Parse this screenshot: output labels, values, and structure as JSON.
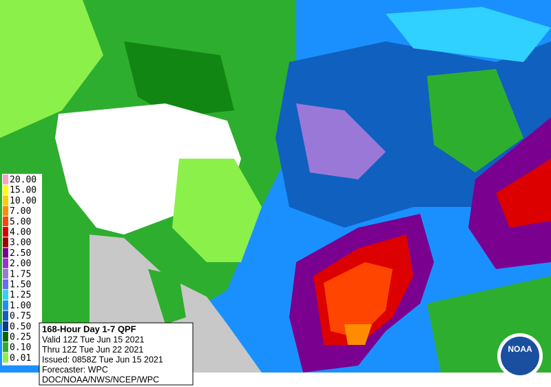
{
  "legend": {
    "items": [
      {
        "label": "20.00",
        "color": "#ff9ec8"
      },
      {
        "label": "15.00",
        "color": "#ffff00"
      },
      {
        "label": "10.00",
        "color": "#ffcc00"
      },
      {
        "label": "7.00",
        "color": "#ff8c00"
      },
      {
        "label": "5.00",
        "color": "#ff4500"
      },
      {
        "label": "4.00",
        "color": "#dd0000"
      },
      {
        "label": "3.00",
        "color": "#a00000"
      },
      {
        "label": "2.50",
        "color": "#7a0090"
      },
      {
        "label": "2.00",
        "color": "#9a30d8"
      },
      {
        "label": "1.75",
        "color": "#9a78d8"
      },
      {
        "label": "1.50",
        "color": "#6a6aff"
      },
      {
        "label": "1.25",
        "color": "#30d0ff"
      },
      {
        "label": "1.00",
        "color": "#1a90ff"
      },
      {
        "label": "0.75",
        "color": "#1060c0"
      },
      {
        "label": "0.50",
        "color": "#0a3a8a"
      },
      {
        "label": "0.25",
        "color": "#006a00"
      },
      {
        "label": "0.10",
        "color": "#2eae2e"
      },
      {
        "label": "0.01",
        "color": "#8cf04a"
      }
    ]
  },
  "info": {
    "title": "168-Hour Day 1-7 QPF",
    "lines": [
      "Valid 12Z Tue Jun 15 2021",
      "Thru 12Z Tue Jun 22 2021",
      "Issued: 0858Z Tue Jun 15 2021",
      "Forecaster: WPC",
      "DOC/NOAA/NWS/NCEP/WPC"
    ]
  },
  "logo": {
    "text": "NOAA"
  }
}
